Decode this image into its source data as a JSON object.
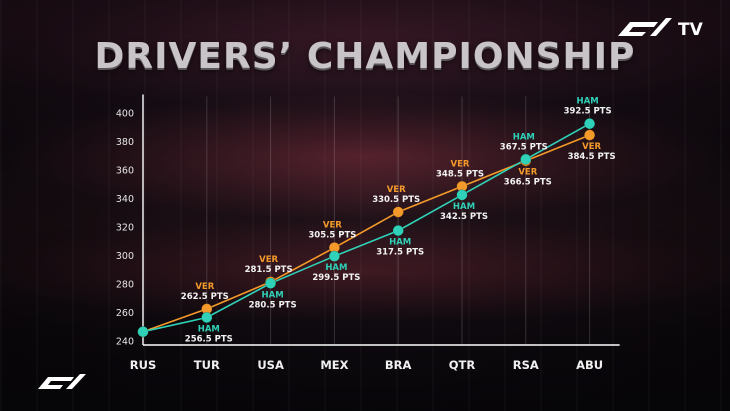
{
  "title": "DRIVERS’ CHAMPIONSHIP",
  "branding": {
    "tv_text": "TV",
    "logo_icon": "f1-logo-icon"
  },
  "colors": {
    "VER": "#f49a2a",
    "HAM": "#2fd2b8",
    "axis": "#ffffff"
  },
  "chart_data": {
    "type": "line",
    "title": "DRIVERS’ CHAMPIONSHIP",
    "categories": [
      "RUS",
      "TUR",
      "USA",
      "MEX",
      "BRA",
      "QTR",
      "RSA",
      "ABU"
    ],
    "yticks": [
      240,
      260,
      280,
      300,
      320,
      340,
      360,
      380,
      400
    ],
    "ylim": [
      240,
      406
    ],
    "grid": "vertical",
    "series": [
      {
        "name": "VER",
        "values": [
          246.5,
          262.5,
          281.5,
          305.5,
          330.5,
          348.5,
          366.5,
          384.5
        ],
        "labels": [
          "",
          "262.5 PTS",
          "281.5 PTS",
          "305.5 PTS",
          "330.5 PTS",
          "348.5 PTS",
          "366.5 PTS",
          "384.5 PTS"
        ]
      },
      {
        "name": "HAM",
        "values": [
          246.5,
          256.5,
          280.5,
          299.5,
          317.5,
          342.5,
          367.5,
          392.5
        ],
        "labels": [
          "",
          "256.5 PTS",
          "280.5 PTS",
          "299.5 PTS",
          "317.5 PTS",
          "342.5 PTS",
          "367.5 PTS",
          "392.5 PTS"
        ]
      }
    ]
  }
}
